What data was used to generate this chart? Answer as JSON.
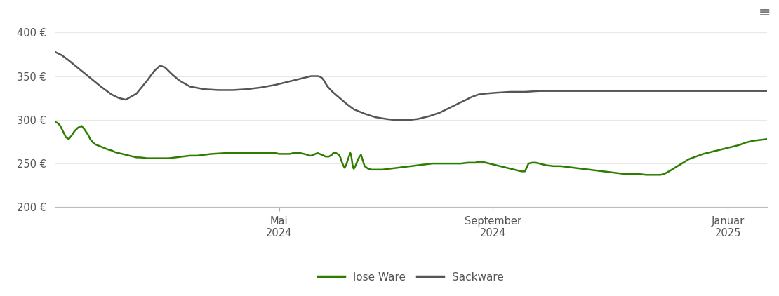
{
  "bg_color": "#ffffff",
  "grid_color": "#e8e8e8",
  "lose_ware_color": "#2e7d00",
  "sackware_color": "#555555",
  "legend_lose": "lose Ware",
  "legend_sack": "Sackware",
  "ylim": [
    200,
    410
  ],
  "yticks": [
    200,
    250,
    300,
    350,
    400
  ],
  "ytick_labels": [
    "200 €",
    "250 €",
    "300 €",
    "350 €",
    "400 €"
  ],
  "xtick_positions": [
    0.315,
    0.615,
    0.945
  ],
  "xtick_labels": [
    "Mai\n2024",
    "September\n2024",
    "Januar\n2025"
  ],
  "sackware_data": [
    [
      0.0,
      378
    ],
    [
      0.01,
      374
    ],
    [
      0.02,
      368
    ],
    [
      0.035,
      358
    ],
    [
      0.05,
      348
    ],
    [
      0.065,
      338
    ],
    [
      0.08,
      329
    ],
    [
      0.09,
      325
    ],
    [
      0.1,
      323
    ],
    [
      0.115,
      330
    ],
    [
      0.13,
      345
    ],
    [
      0.14,
      356
    ],
    [
      0.148,
      362
    ],
    [
      0.155,
      360
    ],
    [
      0.165,
      352
    ],
    [
      0.175,
      345
    ],
    [
      0.19,
      338
    ],
    [
      0.21,
      335
    ],
    [
      0.23,
      334
    ],
    [
      0.25,
      334
    ],
    [
      0.27,
      335
    ],
    [
      0.29,
      337
    ],
    [
      0.31,
      340
    ],
    [
      0.33,
      344
    ],
    [
      0.35,
      348
    ],
    [
      0.36,
      350
    ],
    [
      0.365,
      350
    ],
    [
      0.37,
      350
    ],
    [
      0.373,
      349
    ],
    [
      0.375,
      348
    ],
    [
      0.378,
      345
    ],
    [
      0.38,
      342
    ],
    [
      0.383,
      338
    ],
    [
      0.39,
      332
    ],
    [
      0.4,
      325
    ],
    [
      0.41,
      318
    ],
    [
      0.42,
      312
    ],
    [
      0.435,
      307
    ],
    [
      0.45,
      303
    ],
    [
      0.465,
      301
    ],
    [
      0.475,
      300
    ],
    [
      0.49,
      300
    ],
    [
      0.5,
      300
    ],
    [
      0.51,
      301
    ],
    [
      0.525,
      304
    ],
    [
      0.54,
      308
    ],
    [
      0.555,
      314
    ],
    [
      0.57,
      320
    ],
    [
      0.585,
      326
    ],
    [
      0.595,
      329
    ],
    [
      0.605,
      330
    ],
    [
      0.62,
      331
    ],
    [
      0.64,
      332
    ],
    [
      0.66,
      332
    ],
    [
      0.68,
      333
    ],
    [
      0.7,
      333
    ],
    [
      0.72,
      333
    ],
    [
      0.74,
      333
    ],
    [
      0.76,
      333
    ],
    [
      0.78,
      333
    ],
    [
      0.8,
      333
    ],
    [
      0.82,
      333
    ],
    [
      0.84,
      333
    ],
    [
      0.86,
      333
    ],
    [
      0.88,
      333
    ],
    [
      0.9,
      333
    ],
    [
      0.92,
      333
    ],
    [
      0.94,
      333
    ],
    [
      0.96,
      333
    ],
    [
      0.98,
      333
    ],
    [
      1.0,
      333
    ]
  ],
  "lose_ware_data": [
    [
      0.0,
      298
    ],
    [
      0.005,
      296
    ],
    [
      0.008,
      293
    ],
    [
      0.013,
      285
    ],
    [
      0.016,
      280
    ],
    [
      0.02,
      278
    ],
    [
      0.024,
      282
    ],
    [
      0.028,
      287
    ],
    [
      0.033,
      291
    ],
    [
      0.038,
      293
    ],
    [
      0.042,
      289
    ],
    [
      0.047,
      283
    ],
    [
      0.05,
      278
    ],
    [
      0.054,
      274
    ],
    [
      0.057,
      272
    ],
    [
      0.06,
      271
    ],
    [
      0.063,
      270
    ],
    [
      0.066,
      269
    ],
    [
      0.069,
      268
    ],
    [
      0.072,
      267
    ],
    [
      0.075,
      266
    ],
    [
      0.08,
      265
    ],
    [
      0.085,
      263
    ],
    [
      0.09,
      262
    ],
    [
      0.095,
      261
    ],
    [
      0.1,
      260
    ],
    [
      0.105,
      259
    ],
    [
      0.11,
      258
    ],
    [
      0.115,
      257
    ],
    [
      0.12,
      257
    ],
    [
      0.13,
      256
    ],
    [
      0.14,
      256
    ],
    [
      0.15,
      256
    ],
    [
      0.16,
      256
    ],
    [
      0.17,
      257
    ],
    [
      0.18,
      258
    ],
    [
      0.19,
      259
    ],
    [
      0.2,
      259
    ],
    [
      0.21,
      260
    ],
    [
      0.22,
      261
    ],
    [
      0.24,
      262
    ],
    [
      0.26,
      262
    ],
    [
      0.27,
      262
    ],
    [
      0.28,
      262
    ],
    [
      0.29,
      262
    ],
    [
      0.3,
      262
    ],
    [
      0.31,
      262
    ],
    [
      0.315,
      261
    ],
    [
      0.32,
      261
    ],
    [
      0.33,
      261
    ],
    [
      0.335,
      262
    ],
    [
      0.34,
      262
    ],
    [
      0.345,
      262
    ],
    [
      0.35,
      261
    ],
    [
      0.355,
      260
    ],
    [
      0.358,
      259
    ],
    [
      0.36,
      259
    ],
    [
      0.363,
      260
    ],
    [
      0.366,
      261
    ],
    [
      0.369,
      262
    ],
    [
      0.372,
      261
    ],
    [
      0.375,
      260
    ],
    [
      0.378,
      259
    ],
    [
      0.38,
      258
    ],
    [
      0.383,
      258
    ],
    [
      0.385,
      258
    ],
    [
      0.387,
      259
    ],
    [
      0.389,
      260
    ],
    [
      0.391,
      262
    ],
    [
      0.393,
      262
    ],
    [
      0.395,
      262
    ],
    [
      0.397,
      261
    ],
    [
      0.399,
      260
    ],
    [
      0.401,
      257
    ],
    [
      0.403,
      252
    ],
    [
      0.405,
      248
    ],
    [
      0.407,
      245
    ],
    [
      0.409,
      248
    ],
    [
      0.411,
      253
    ],
    [
      0.413,
      258
    ],
    [
      0.415,
      262
    ],
    [
      0.416,
      260
    ],
    [
      0.417,
      255
    ],
    [
      0.418,
      249
    ],
    [
      0.419,
      245
    ],
    [
      0.42,
      244
    ],
    [
      0.422,
      247
    ],
    [
      0.424,
      251
    ],
    [
      0.426,
      255
    ],
    [
      0.428,
      258
    ],
    [
      0.43,
      260
    ],
    [
      0.435,
      247
    ],
    [
      0.44,
      244
    ],
    [
      0.445,
      243
    ],
    [
      0.45,
      243
    ],
    [
      0.46,
      243
    ],
    [
      0.47,
      244
    ],
    [
      0.48,
      245
    ],
    [
      0.49,
      246
    ],
    [
      0.5,
      247
    ],
    [
      0.51,
      248
    ],
    [
      0.52,
      249
    ],
    [
      0.53,
      250
    ],
    [
      0.54,
      250
    ],
    [
      0.55,
      250
    ],
    [
      0.56,
      250
    ],
    [
      0.57,
      250
    ],
    [
      0.58,
      251
    ],
    [
      0.59,
      251
    ],
    [
      0.595,
      252
    ],
    [
      0.6,
      252
    ],
    [
      0.605,
      251
    ],
    [
      0.61,
      250
    ],
    [
      0.615,
      249
    ],
    [
      0.62,
      248
    ],
    [
      0.625,
      247
    ],
    [
      0.63,
      246
    ],
    [
      0.635,
      245
    ],
    [
      0.64,
      244
    ],
    [
      0.645,
      243
    ],
    [
      0.65,
      242
    ],
    [
      0.655,
      241
    ],
    [
      0.66,
      241
    ],
    [
      0.665,
      250
    ],
    [
      0.67,
      251
    ],
    [
      0.675,
      251
    ],
    [
      0.68,
      250
    ],
    [
      0.685,
      249
    ],
    [
      0.69,
      248
    ],
    [
      0.7,
      247
    ],
    [
      0.71,
      247
    ],
    [
      0.72,
      246
    ],
    [
      0.73,
      245
    ],
    [
      0.74,
      244
    ],
    [
      0.75,
      243
    ],
    [
      0.76,
      242
    ],
    [
      0.77,
      241
    ],
    [
      0.78,
      240
    ],
    [
      0.79,
      239
    ],
    [
      0.8,
      238
    ],
    [
      0.81,
      238
    ],
    [
      0.82,
      238
    ],
    [
      0.83,
      237
    ],
    [
      0.84,
      237
    ],
    [
      0.85,
      237
    ],
    [
      0.855,
      238
    ],
    [
      0.86,
      240
    ],
    [
      0.87,
      245
    ],
    [
      0.88,
      250
    ],
    [
      0.89,
      255
    ],
    [
      0.9,
      258
    ],
    [
      0.91,
      261
    ],
    [
      0.92,
      263
    ],
    [
      0.93,
      265
    ],
    [
      0.94,
      267
    ],
    [
      0.95,
      269
    ],
    [
      0.96,
      271
    ],
    [
      0.97,
      274
    ],
    [
      0.98,
      276
    ],
    [
      0.99,
      277
    ],
    [
      1.0,
      278
    ]
  ]
}
